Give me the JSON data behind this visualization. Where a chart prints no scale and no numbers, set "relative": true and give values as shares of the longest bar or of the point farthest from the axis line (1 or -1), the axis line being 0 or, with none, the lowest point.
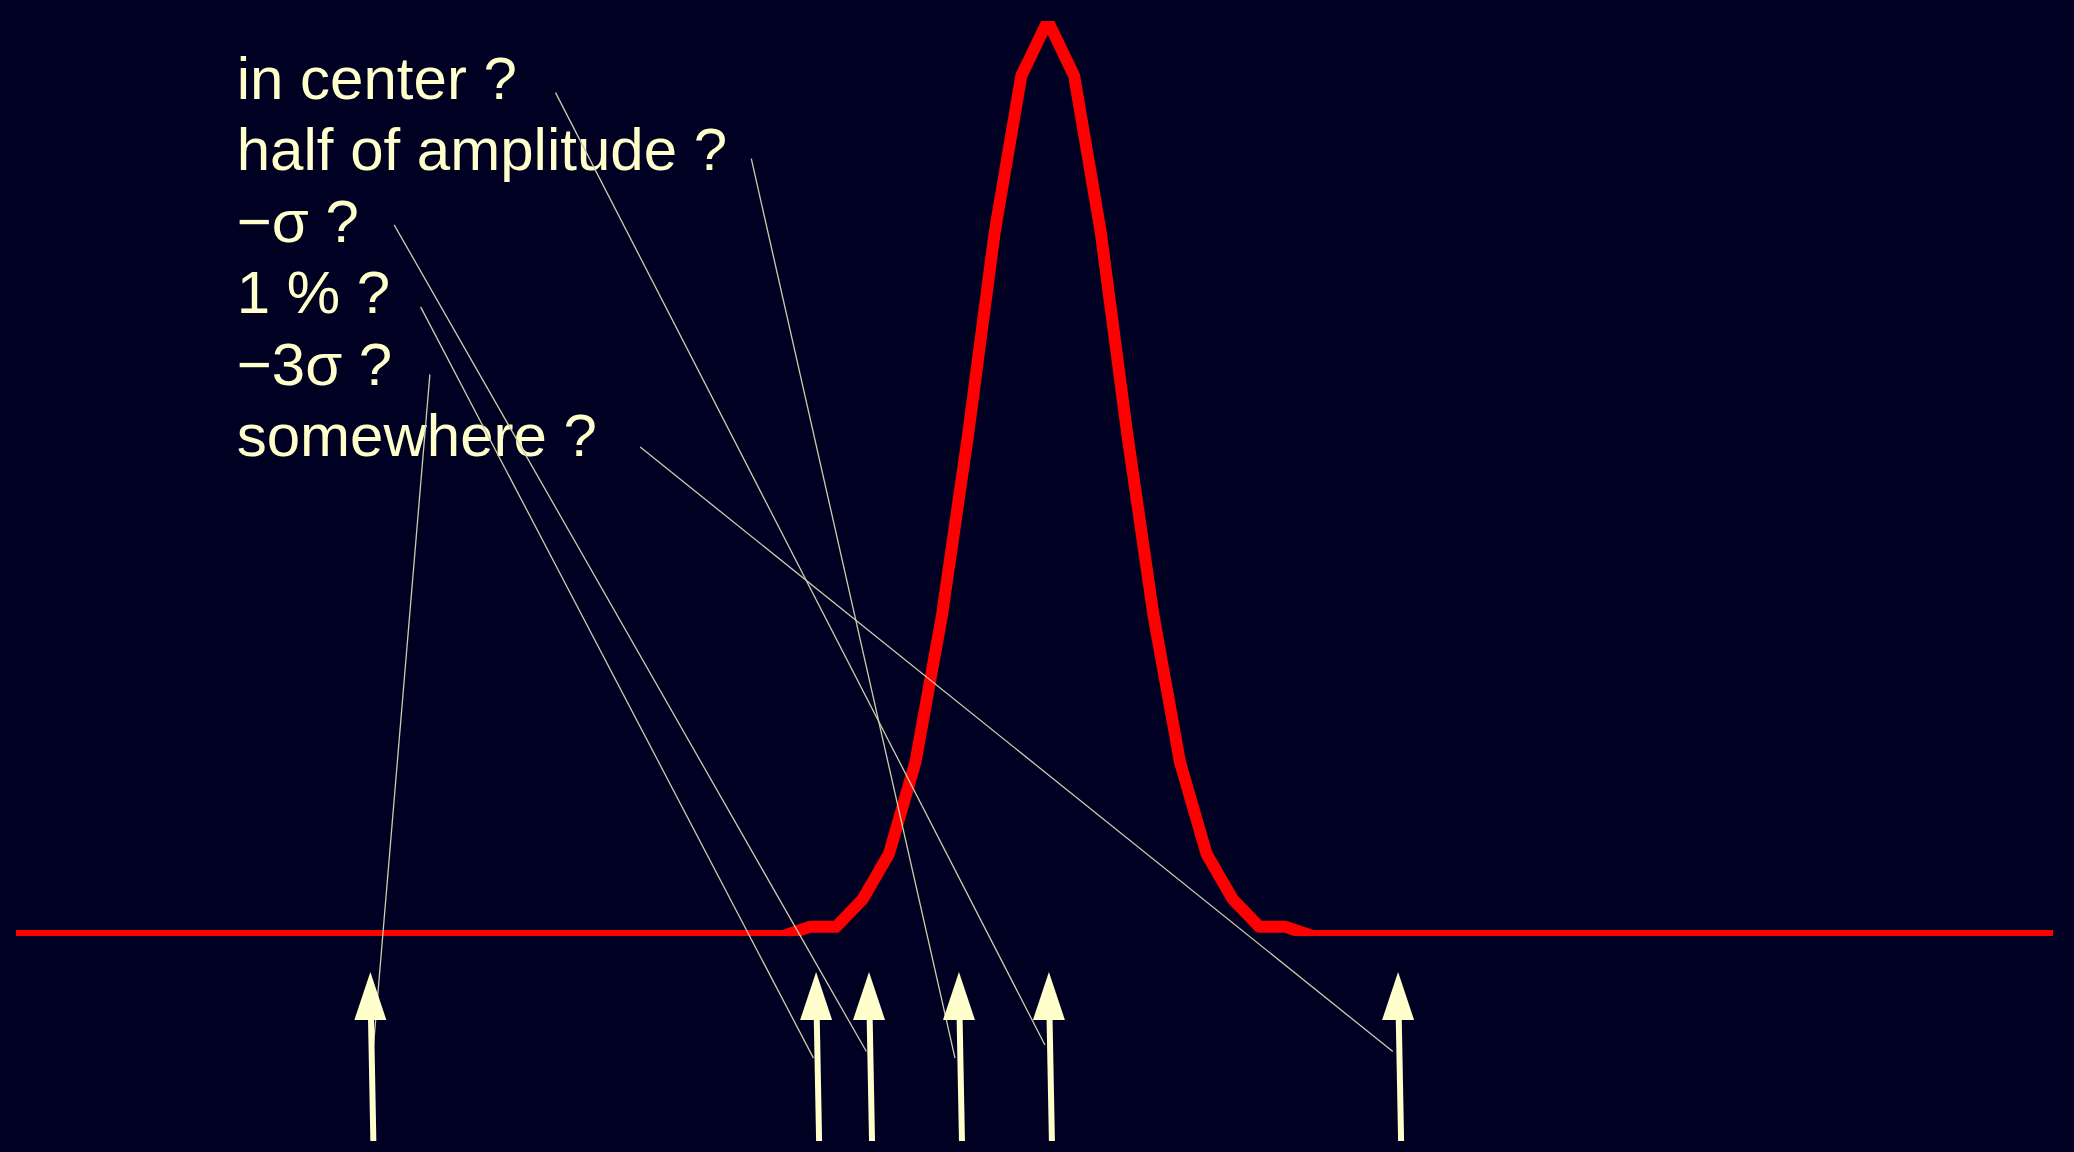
{
  "chart_data": {
    "type": "line",
    "relative": true,
    "marker": "none",
    "line_style": "solid",
    "legend": false,
    "categories": [
      null,
      null,
      null,
      null,
      null,
      null,
      null,
      null,
      null,
      null,
      null,
      null,
      null,
      null,
      null,
      null,
      null,
      null,
      null,
      null,
      null,
      null,
      null,
      null,
      null,
      null,
      null,
      null,
      null,
      null,
      null,
      null,
      null,
      null,
      null,
      null,
      null,
      null,
      null,
      null,
      null,
      null,
      null,
      null,
      null,
      null,
      null,
      null,
      null,
      null,
      null,
      null,
      null,
      null,
      null,
      null,
      null,
      null,
      null,
      null,
      null,
      null,
      null,
      null,
      null,
      null,
      null,
      null,
      null,
      null,
      null,
      null,
      null,
      null,
      null,
      null,
      null,
      null
    ],
    "series": [
      {
        "color": "#ff0000",
        "values": [
          0,
          0,
          0,
          0,
          0,
          0,
          0,
          0,
          0,
          0,
          0,
          0,
          0,
          0,
          0,
          0,
          0,
          0,
          0,
          0,
          0,
          0,
          0,
          0,
          0,
          0,
          0,
          0,
          0,
          0,
          0.01,
          0.01,
          0.04,
          0.09,
          0.19,
          0.35,
          0.55,
          0.77,
          0.94,
          1,
          0.94,
          0.77,
          0.55,
          0.35,
          0.19,
          0.09,
          0.04,
          0.01,
          0.01,
          0,
          0,
          0,
          0,
          0,
          0,
          0,
          0,
          0,
          0,
          0,
          0,
          0,
          0,
          0,
          0,
          0,
          0,
          0,
          0,
          0,
          0,
          0,
          0,
          0,
          0,
          0,
          0,
          0
        ]
      }
    ],
    "annotations": [
      "in center ?",
      "half of amplitude ?",
      "−σ ?",
      "1 % ?",
      "−3σ ?",
      "somewhere ?"
    ]
  }
}
